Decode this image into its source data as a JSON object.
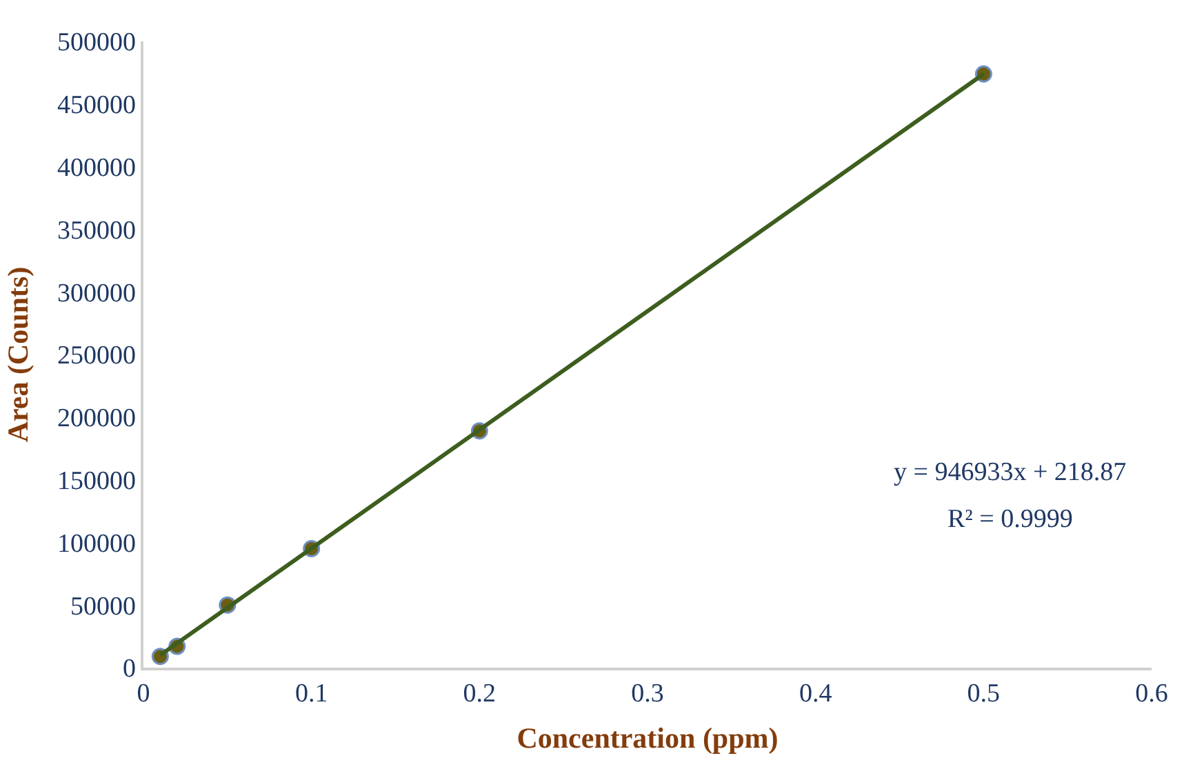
{
  "chart_data": {
    "type": "scatter",
    "xlabel": "Concentration (ppm)",
    "ylabel": "Area (Counts)",
    "series": [
      {
        "color": "#6b5e12",
        "x": [
          0.01,
          0.02,
          0.05,
          0.1,
          0.2,
          0.5
        ],
        "values": [
          9000,
          17000,
          50000,
          95000,
          189000,
          474000
        ],
        "marker": "circle"
      },
      {
        "type": "line",
        "color": "#3d5e1e",
        "x": [
          0.01,
          0.5
        ],
        "values": [
          10000,
          474000
        ],
        "marker": "none",
        "line_style": "solid"
      }
    ],
    "annotations": [
      "y = 946933x + 218.87",
      "R² = 0.9999"
    ],
    "xlim": [
      0,
      0.6
    ],
    "xticks": [
      0,
      0.1,
      0.2,
      0.3,
      0.4,
      0.5,
      0.6
    ],
    "ylim": [
      0,
      500000
    ],
    "yticks": [
      0,
      50000,
      100000,
      150000,
      200000,
      250000,
      300000,
      350000,
      400000,
      450000,
      500000
    ]
  }
}
